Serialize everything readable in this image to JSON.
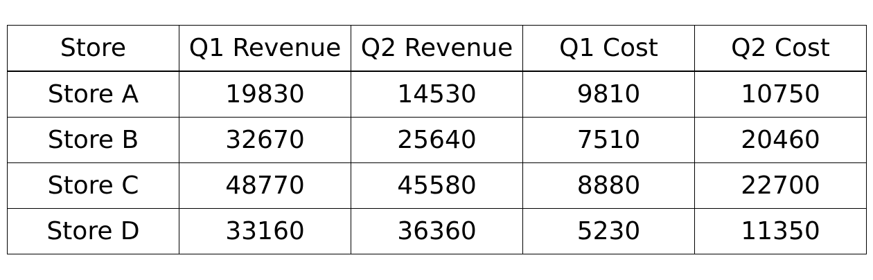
{
  "chart_data": {
    "type": "table",
    "columns": [
      "Store",
      "Q1 Revenue",
      "Q2 Revenue",
      "Q1 Cost",
      "Q2 Cost"
    ],
    "rows": [
      [
        "Store A",
        "19830",
        "14530",
        "9810",
        "10750"
      ],
      [
        "Store B",
        "32670",
        "25640",
        "7510",
        "20460"
      ],
      [
        "Store C",
        "48770",
        "45580",
        "8880",
        "22700"
      ],
      [
        "Store D",
        "33160",
        "36360",
        "5230",
        "11350"
      ]
    ]
  }
}
